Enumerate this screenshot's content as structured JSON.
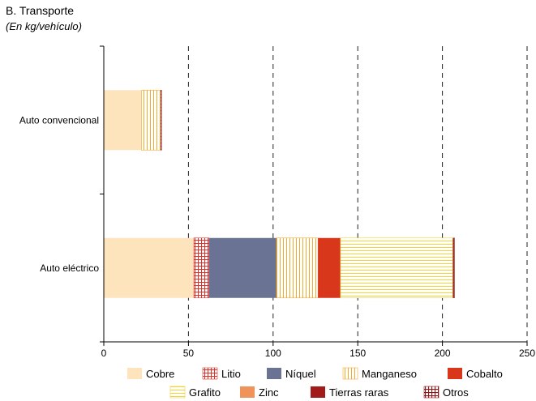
{
  "chart_data": {
    "type": "bar",
    "orientation": "horizontal",
    "stacked": true,
    "title": "B. Transporte",
    "subtitle": "(En kg/vehículo)",
    "categories": [
      "Auto convencional",
      "Auto eléctrico"
    ],
    "series": [
      {
        "name": "Cobre",
        "values": [
          22.3,
          53.2
        ],
        "color": "#fde4bd",
        "pattern": "solid"
      },
      {
        "name": "Litio",
        "values": [
          0,
          8.9
        ],
        "color": "#e0312b",
        "pattern": "grid"
      },
      {
        "name": "Níquel",
        "values": [
          0,
          39.9
        ],
        "color": "#6a7393",
        "pattern": "solid"
      },
      {
        "name": "Manganeso",
        "values": [
          11.2,
          24.5
        ],
        "color": "#f4a92c",
        "pattern": "vertical"
      },
      {
        "name": "Cobalto",
        "values": [
          0,
          13.3
        ],
        "color": "#d9371b",
        "pattern": "solid"
      },
      {
        "name": "Grafito",
        "values": [
          0,
          66.3
        ],
        "color": "#f2d33a",
        "pattern": "horizontal"
      },
      {
        "name": "Zinc",
        "values": [
          0.2,
          0.1
        ],
        "color": "#f0935a",
        "pattern": "solid"
      },
      {
        "name": "Tierras raras",
        "values": [
          0,
          0.5
        ],
        "color": "#a11b1b",
        "pattern": "solid"
      },
      {
        "name": "Otros",
        "values": [
          0.3,
          0.3
        ],
        "color": "#8b1a1a",
        "pattern": "grid"
      }
    ],
    "xlim": [
      0,
      250
    ],
    "xticks": [
      0,
      50,
      100,
      150,
      200,
      250
    ],
    "gridlines": "vertical-dashed",
    "legend_position": "bottom"
  }
}
